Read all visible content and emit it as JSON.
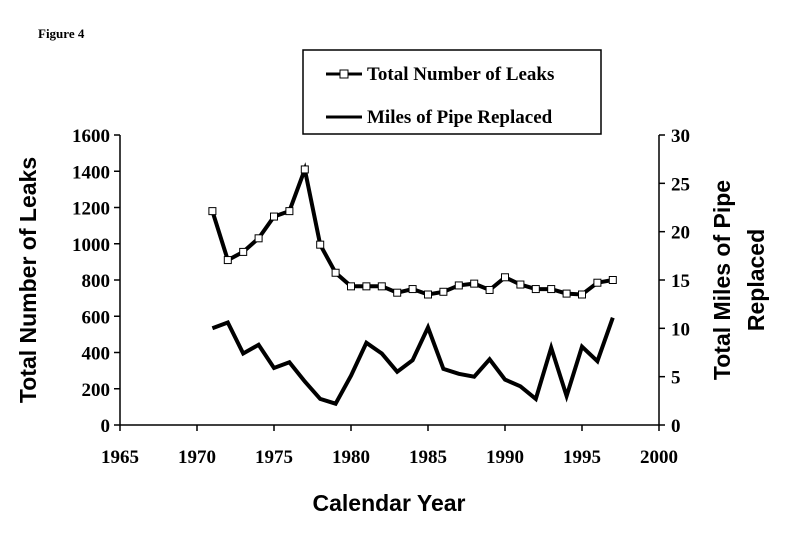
{
  "figure_label": "Figure 4",
  "chart_data": {
    "type": "line",
    "xlabel": "Calendar Year",
    "ylabel_left": "Total Number of Leaks",
    "ylabel_right": [
      "Total Miles of Pipe",
      "Replaced"
    ],
    "xlim": [
      1965,
      2000
    ],
    "ylim_left": [
      0,
      1600
    ],
    "ylim_right": [
      0,
      30
    ],
    "x_ticks": [
      1965,
      1970,
      1975,
      1980,
      1985,
      1990,
      1995,
      2000
    ],
    "y_ticks_left": [
      0,
      200,
      400,
      600,
      800,
      1000,
      1200,
      1400,
      1600
    ],
    "y_ticks_right": [
      0,
      5,
      10,
      15,
      20,
      25,
      30
    ],
    "grid": false,
    "legend_position": "top-center",
    "series": [
      {
        "name": "Total Number of Leaks",
        "axis": "left",
        "marker": "square",
        "color": "#000000",
        "x": [
          1971,
          1972,
          1973,
          1974,
          1975,
          1976,
          1977,
          1978,
          1979,
          1980,
          1981,
          1982,
          1983,
          1984,
          1985,
          1986,
          1987,
          1988,
          1989,
          1990,
          1991,
          1992,
          1993,
          1994,
          1995,
          1996,
          1997
        ],
        "y": [
          1180,
          910,
          955,
          1030,
          1150,
          1180,
          1410,
          995,
          840,
          765,
          765,
          765,
          730,
          750,
          720,
          735,
          770,
          780,
          745,
          815,
          775,
          750,
          750,
          725,
          720,
          785,
          800
        ]
      },
      {
        "name": "Miles of Pipe Replaced",
        "axis": "right",
        "marker": "none",
        "color": "#000000",
        "x": [
          1971,
          1972,
          1973,
          1974,
          1975,
          1976,
          1977,
          1978,
          1979,
          1980,
          1981,
          1982,
          1983,
          1984,
          1985,
          1986,
          1987,
          1988,
          1989,
          1990,
          1991,
          1992,
          1993,
          1994,
          1995,
          1996,
          1997
        ],
        "y": [
          10,
          10.6,
          7.4,
          8.3,
          5.9,
          6.5,
          4.5,
          2.7,
          2.2,
          5.1,
          8.5,
          7.4,
          5.5,
          6.7,
          10.1,
          5.8,
          5.3,
          5.0,
          6.8,
          4.7,
          4.0,
          2.7,
          8.0,
          3.0,
          8.1,
          6.6,
          11.1
        ]
      }
    ]
  }
}
